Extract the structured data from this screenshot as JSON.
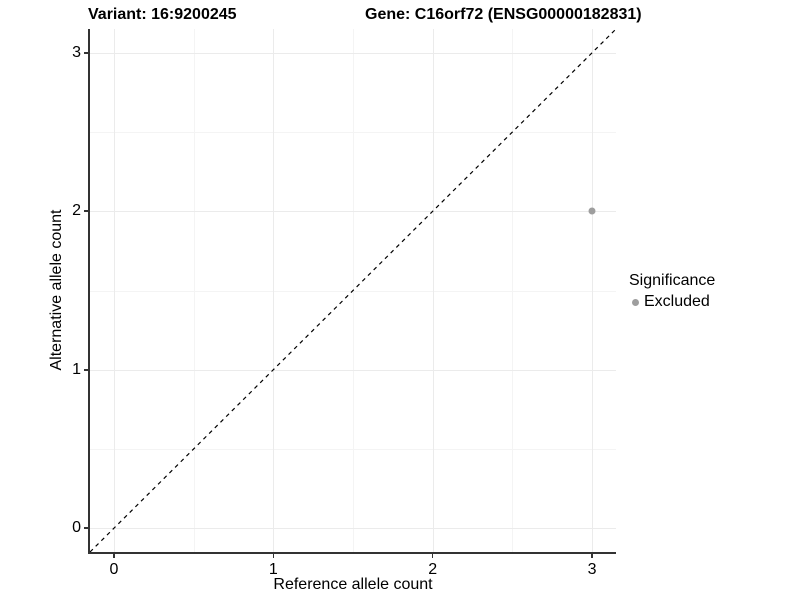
{
  "titles": {
    "variant": "Variant: 16:9200245",
    "gene": "Gene: C16orf72 (ENSG00000182831)"
  },
  "chart_data": {
    "type": "scatter",
    "title": "Variant: 16:9200245  Gene: C16orf72 (ENSG00000182831)",
    "xlabel": "Reference allele count",
    "ylabel": "Alternative allele count",
    "xlim": [
      -0.15,
      3.15
    ],
    "ylim": [
      -0.15,
      3.15
    ],
    "x_ticks": [
      0,
      1,
      2,
      3
    ],
    "y_ticks": [
      0,
      1,
      2,
      3
    ],
    "x_minor_gridlines": [
      0.5,
      1.5,
      2.5
    ],
    "y_minor_gridlines": [
      0.5,
      1.5,
      2.5
    ],
    "grid": true,
    "reference_line": {
      "type": "abline",
      "slope": 1,
      "intercept": 0,
      "style": "dashed",
      "color": "#000000"
    },
    "series": [
      {
        "name": "Excluded",
        "color": "#9e9e9e",
        "points": [
          {
            "x": 3,
            "y": 2
          }
        ]
      }
    ],
    "legend": {
      "title": "Significance",
      "position": "right",
      "entries": [
        {
          "label": "Excluded",
          "color": "#9e9e9e"
        }
      ]
    }
  },
  "colors": {
    "background": "#ffffff",
    "grid_major": "#ebebeb",
    "grid_minor": "#f4f4f4",
    "axis": "#333333",
    "text": "#000000",
    "excluded_point": "#9e9e9e"
  }
}
